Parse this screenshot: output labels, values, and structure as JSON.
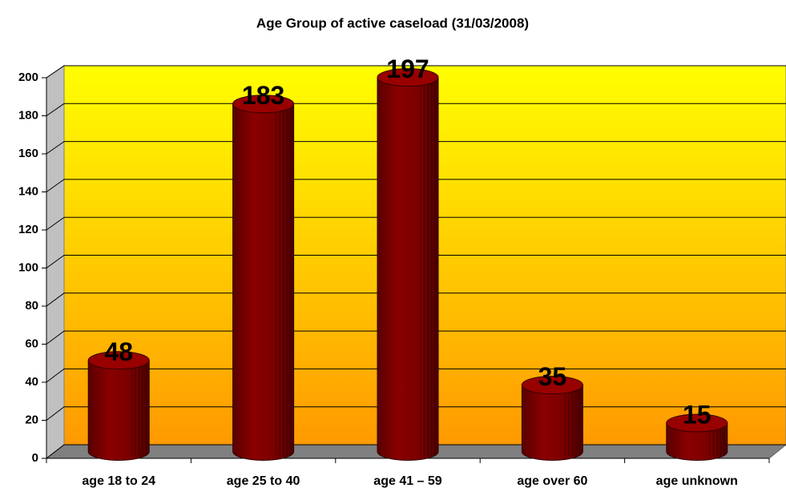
{
  "chart_data": {
    "type": "bar",
    "title": "Age Group of active caseload (31/03/2008)",
    "categories": [
      "age 18 to 24",
      "age 25 to 40",
      "age 41 – 59",
      "age over 60",
      "age unknown"
    ],
    "values": [
      48,
      183,
      197,
      35,
      15
    ],
    "color": "#800000",
    "ylim": [
      0,
      200
    ],
    "yticks": [
      0,
      20,
      40,
      60,
      80,
      100,
      120,
      140,
      160,
      180,
      200
    ],
    "grid": true
  }
}
